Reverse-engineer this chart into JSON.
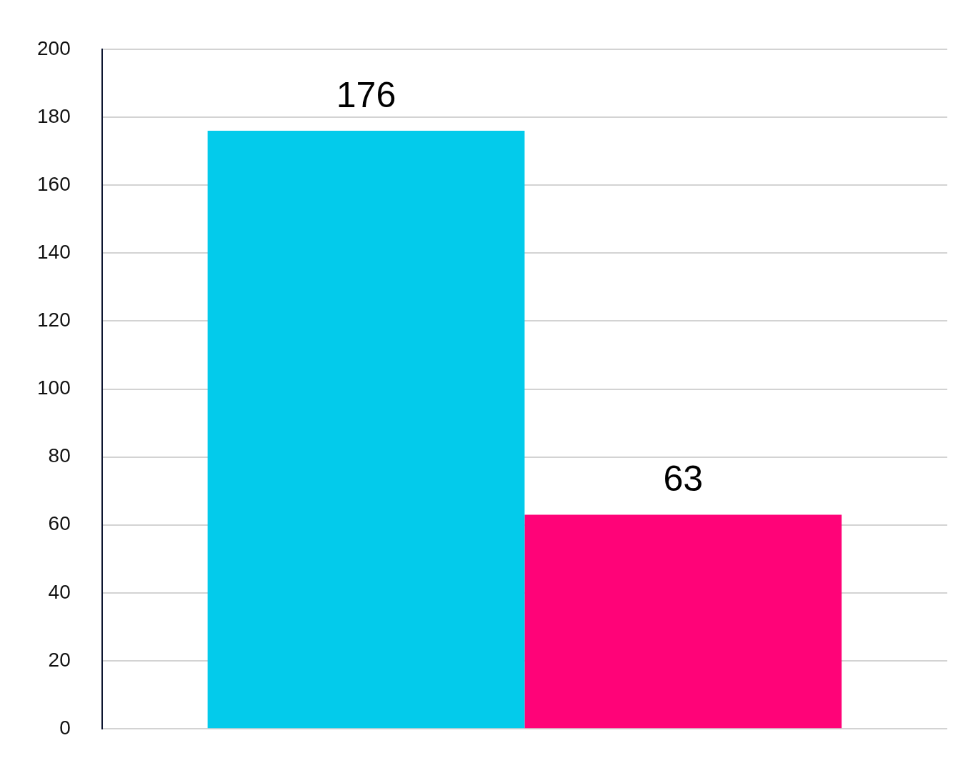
{
  "chart_data": {
    "type": "bar",
    "categories": [
      null
    ],
    "series": [
      {
        "color": "#03cbeb",
        "values": [
          176
        ]
      },
      {
        "color": "#ff0378",
        "values": [
          63
        ]
      }
    ],
    "ylim": [
      0,
      200
    ],
    "yticks": [
      0,
      20,
      40,
      60,
      80,
      100,
      120,
      140,
      160,
      180,
      200
    ],
    "grid": "y",
    "data_labels": true
  }
}
